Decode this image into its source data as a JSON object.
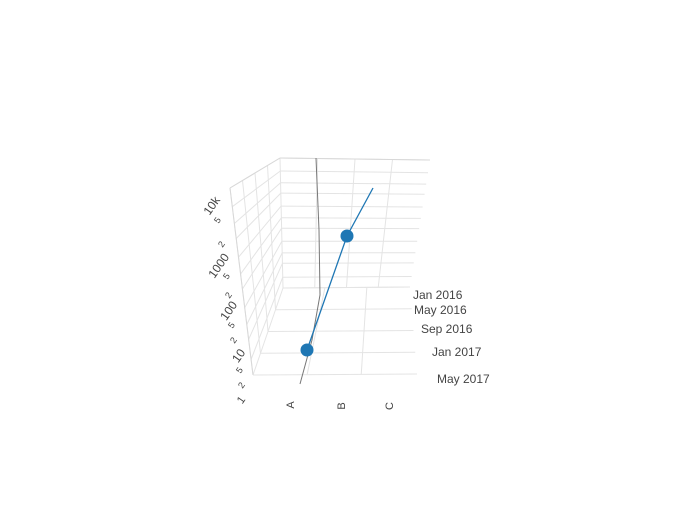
{
  "chart_data": {
    "type": "scatter3d",
    "x_axis": {
      "type": "category",
      "categories": [
        "A",
        "B",
        "C"
      ]
    },
    "y_axis": {
      "type": "date",
      "ticks": [
        "Jan 2016",
        "May 2016",
        "Sep 2016",
        "Jan 2017",
        "May 2017"
      ]
    },
    "z_axis": {
      "type": "log",
      "range": [
        1,
        20000
      ],
      "tick_labels": [
        "1",
        "2",
        "5",
        "10",
        "2",
        "5",
        "100",
        "2",
        "5",
        "1000",
        "2",
        "5",
        "10k"
      ]
    },
    "series": [
      {
        "mode": "lines+markers",
        "color": "#1f77b4",
        "points": [
          {
            "x": "A",
            "y": "2017-01-01",
            "z": 10
          },
          {
            "x": "B",
            "y": "2016-03-01",
            "z": 2000
          }
        ],
        "line_extends_to": {
          "x": "C",
          "y": "2016-01-01",
          "z": 10000
        }
      }
    ],
    "grid": true
  }
}
